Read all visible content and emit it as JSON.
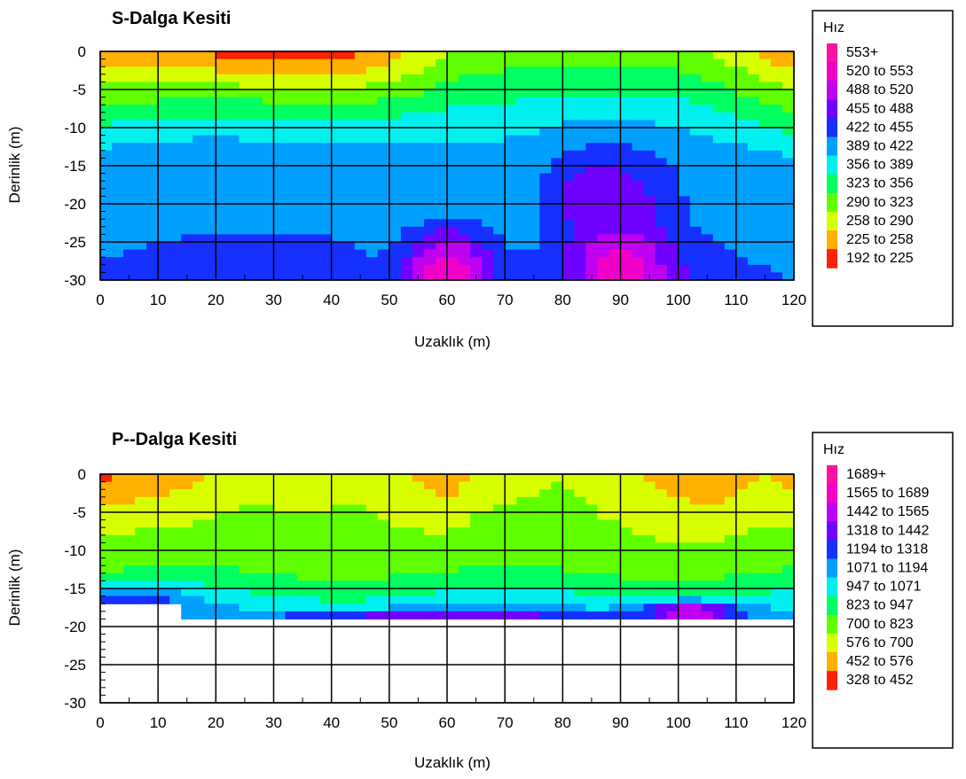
{
  "chart_data": [
    {
      "type": "heatmap",
      "title": "S-Dalga Kesiti",
      "xlabel": "Uzaklık (m)",
      "ylabel": "Derinlik (m)",
      "xlim": [
        0,
        120
      ],
      "ylim": [
        -30,
        0
      ],
      "x_ticks": [
        "0",
        "10",
        "20",
        "30",
        "40",
        "50",
        "60",
        "70",
        "80",
        "90",
        "100",
        "110",
        "120"
      ],
      "y_ticks": [
        "0",
        "-5",
        "-10",
        "-15",
        "-20",
        "-25",
        "-30"
      ],
      "grid": true,
      "legend": {
        "title": "Hız",
        "placement": "right",
        "items": [
          "553+",
          "520 to 553",
          "488 to 520",
          "455 to 488",
          "422 to 455",
          "389 to 422",
          "356 to 389",
          "323 to 356",
          "290 to 323",
          "258 to 290",
          "225 to 258",
          "192 to 225"
        ],
        "colors": [
          "#ff10a0",
          "#f000c8",
          "#c000f0",
          "#7000ff",
          "#1530ff",
          "#00a0ff",
          "#00f0f0",
          "#00ff60",
          "#60ff00",
          "#d8ff00",
          "#ffb000",
          "#ff2000"
        ]
      },
      "depth_limit": [],
      "surface_bands": [
        {
          "x": [
            0,
            30,
            45,
            55,
            60,
            65,
            80,
            100,
            110,
            120
          ],
          "v": [
            230,
            208,
            215,
            260,
            290,
            300,
            310,
            300,
            270,
            225
          ]
        }
      ],
      "anomalies": [
        {
          "x": 50,
          "z": -16,
          "v": 395,
          "sx": 50,
          "sz": 8
        },
        {
          "x": 60,
          "z": -29,
          "v": 545,
          "sx": 8,
          "sz": 6
        },
        {
          "x": 90,
          "z": -28,
          "v": 545,
          "sx": 8,
          "sz": 6
        },
        {
          "x": 87,
          "z": -19,
          "v": 485,
          "sx": 10,
          "sz": 6
        },
        {
          "x": 35,
          "z": -27,
          "v": 440,
          "sx": 12,
          "sz": 4
        }
      ]
    },
    {
      "type": "heatmap",
      "title": "P--Dalga Kesiti",
      "xlabel": "Uzaklık (m)",
      "ylabel": "Derinlik (m)",
      "xlim": [
        0,
        120
      ],
      "ylim": [
        -30,
        0
      ],
      "x_ticks": [
        "0",
        "10",
        "20",
        "30",
        "40",
        "50",
        "60",
        "70",
        "80",
        "90",
        "100",
        "110",
        "120"
      ],
      "y_ticks": [
        "0",
        "-5",
        "-10",
        "-15",
        "-20",
        "-25",
        "-30"
      ],
      "grid": true,
      "legend": {
        "title": "Hız",
        "placement": "right",
        "items": [
          "1689+",
          "1565 to 1689",
          "1442 to 1565",
          "1318 to 1442",
          "1194 to 1318",
          "1071 to 1194",
          "947 to 1071",
          "823 to 947",
          "700 to 823",
          "576 to 700",
          "452 to 576",
          "328 to 452"
        ],
        "colors": [
          "#ff10a0",
          "#f000c8",
          "#c000f0",
          "#7000ff",
          "#1530ff",
          "#00a0ff",
          "#00f0f0",
          "#00ff60",
          "#60ff00",
          "#d8ff00",
          "#ffb000",
          "#ff2000"
        ]
      },
      "depth_limit": [
        {
          "x": [
            0,
            15
          ],
          "z": -17
        },
        {
          "x": [
            15,
            120
          ],
          "z": -19
        }
      ],
      "surface_bands": [
        {
          "x": [
            0,
            15,
            25,
            45,
            55,
            60,
            65,
            80,
            95,
            105,
            115,
            120
          ],
          "v": [
            430,
            520,
            640,
            680,
            560,
            460,
            600,
            690,
            560,
            470,
            570,
            520
          ]
        }
      ],
      "anomalies": [
        {
          "x": 5,
          "z": -17,
          "v": 1300,
          "sx": 10,
          "sz": 2
        },
        {
          "x": 60,
          "z": -18.5,
          "v": 1380,
          "sx": 30,
          "sz": 0.8
        },
        {
          "x": 102,
          "z": -18,
          "v": 1600,
          "sx": 8,
          "sz": 1.2
        }
      ]
    }
  ]
}
